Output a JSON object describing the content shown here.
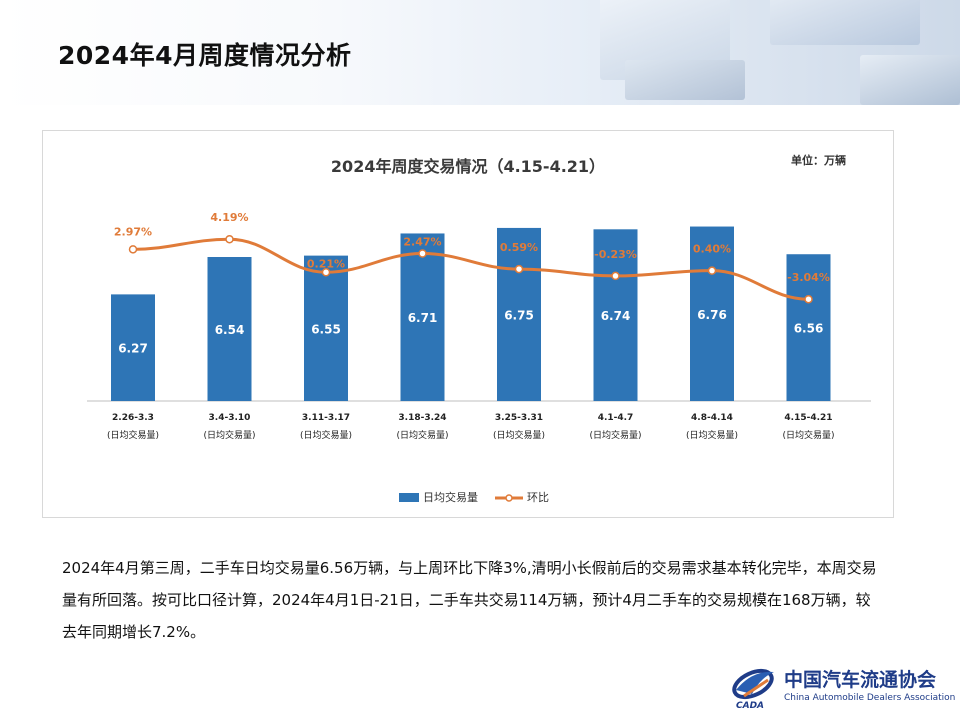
{
  "page": {
    "title": "2024年4月周度情况分析",
    "paragraph": "2024年4月第三周，二手车日均交易量6.56万辆，与上周环比下降3%,清明小长假前后的交易需求基本转化完毕，本周交易量有所回落。按可比口径计算，2024年4月1日-21日，二手车共交易114万辆，预计4月二手车的交易规模在168万辆，较去年同期增长7.2%。"
  },
  "colors": {
    "bar": "#2e75b6",
    "line": "#e07b39",
    "title": "#3a3a3a"
  },
  "chart_data": {
    "type": "bar",
    "title": "2024年周度交易情况（4.15-4.21）",
    "unit_label": "单位：万辆",
    "categories": [
      "2.26-3.3",
      "3.4-3.10",
      "3.11-3.17",
      "3.18-3.24",
      "3.25-3.31",
      "4.1-4.7",
      "4.8-4.14",
      "4.15-4.21"
    ],
    "category_sublabel": "(日均交易量)",
    "series": [
      {
        "name": "日均交易量",
        "kind": "bar",
        "values": [
          6.27,
          6.54,
          6.55,
          6.71,
          6.75,
          6.74,
          6.76,
          6.56
        ]
      },
      {
        "name": "环比",
        "kind": "line",
        "values": [
          2.97,
          4.19,
          0.21,
          2.47,
          0.59,
          -0.23,
          0.4,
          -3.04
        ],
        "labels": [
          "2.97%",
          "4.19%",
          "0.21%",
          "2.47%",
          "0.59%",
          "-0.23%",
          "0.40%",
          "-3.04%"
        ]
      }
    ],
    "bar_ylim": [
      5.5,
      6.8
    ],
    "legend_position": "bottom-center"
  },
  "logo": {
    "name_cn": "中国汽车流通协会",
    "name_en": "China Automobile Dealers Association",
    "mark": "CADA"
  }
}
